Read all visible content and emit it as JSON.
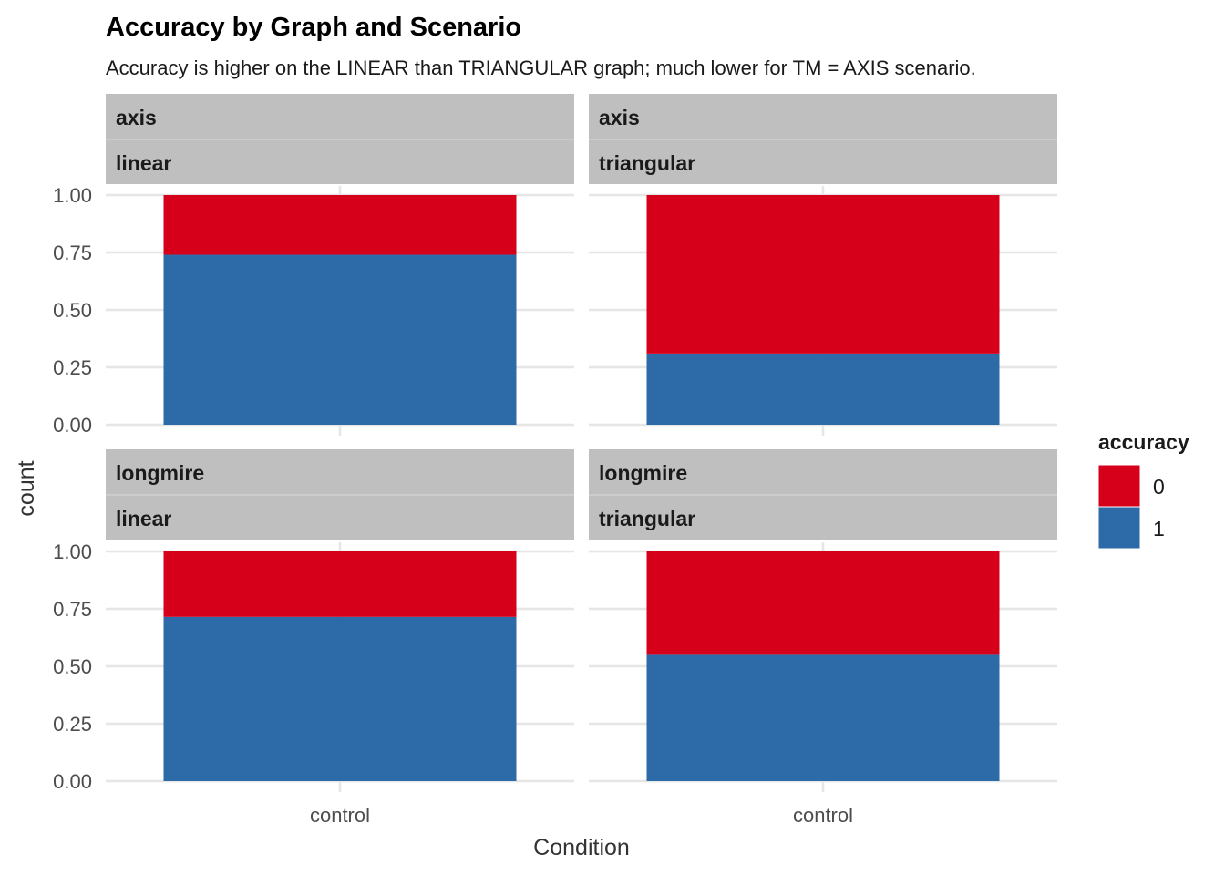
{
  "chart_data": {
    "type": "bar",
    "stacked": true,
    "title": "Accuracy by Graph and Scenario",
    "subtitle": "Accuracy is higher on the LINEAR than TRIANGULAR graph; much lower for TM = AXIS scenario.",
    "xlabel": "Condition",
    "ylabel": "count",
    "ylim": [
      0,
      1
    ],
    "y_ticks": [
      "0.00",
      "0.25",
      "0.50",
      "0.75",
      "1.00"
    ],
    "categories": [
      "control"
    ],
    "legend": {
      "title": "accuracy",
      "position": "right",
      "entries": [
        {
          "label": "0",
          "color": "#D7001B"
        },
        {
          "label": "1",
          "color": "#2C6AA8"
        }
      ]
    },
    "grid": true,
    "panels": [
      {
        "scenario": "axis",
        "graph": "linear",
        "series": [
          {
            "name": "1",
            "values": [
              0.74
            ]
          },
          {
            "name": "0",
            "values": [
              0.26
            ]
          }
        ]
      },
      {
        "scenario": "axis",
        "graph": "triangular",
        "series": [
          {
            "name": "1",
            "values": [
              0.31
            ]
          },
          {
            "name": "0",
            "values": [
              0.69
            ]
          }
        ]
      },
      {
        "scenario": "longmire",
        "graph": "linear",
        "series": [
          {
            "name": "1",
            "values": [
              0.715
            ]
          },
          {
            "name": "0",
            "values": [
              0.285
            ]
          }
        ]
      },
      {
        "scenario": "longmire",
        "graph": "triangular",
        "series": [
          {
            "name": "1",
            "values": [
              0.55
            ]
          },
          {
            "name": "0",
            "values": [
              0.45
            ]
          }
        ]
      }
    ]
  }
}
